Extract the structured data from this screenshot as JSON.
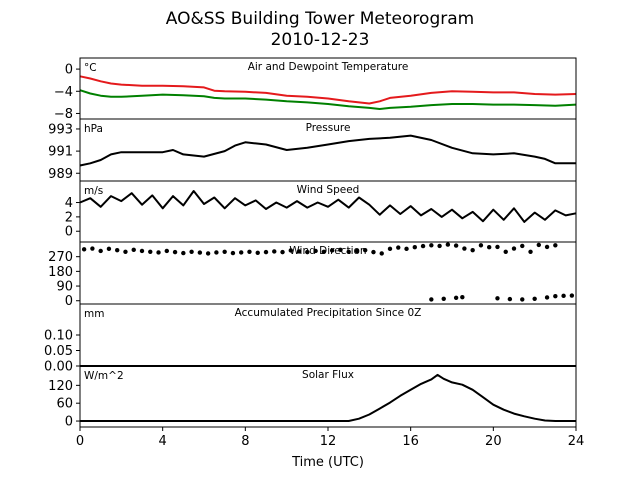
{
  "figure": {
    "title": "AO&SS Building Tower Meteorogram",
    "subtitle": "2010-12-23",
    "xlabel": "Time (UTC)",
    "xticks": [
      "0",
      "4",
      "8",
      "12",
      "16",
      "20",
      "24"
    ]
  },
  "chart_data": [
    {
      "type": "line",
      "title": "Air and Dewpoint Temperature",
      "unit": "°C",
      "xlim": [
        0,
        24
      ],
      "ylim": [
        -9,
        2
      ],
      "yticks": [
        {
          "v": 0,
          "label": "0"
        },
        {
          "v": -4,
          "label": "−4"
        },
        {
          "v": -8,
          "label": "−8"
        }
      ],
      "series": [
        {
          "color": "#e41a1c",
          "x": [
            0,
            0.5,
            1,
            1.5,
            2,
            3,
            4,
            5,
            6,
            6.5,
            7,
            8,
            9,
            10,
            11,
            12,
            13,
            14,
            14.5,
            15,
            16,
            17,
            18,
            19,
            20,
            21,
            22,
            23,
            24
          ],
          "y": [
            -1.3,
            -1.7,
            -2.2,
            -2.6,
            -2.8,
            -3.0,
            -3.0,
            -3.1,
            -3.3,
            -3.9,
            -4.0,
            -4.1,
            -4.3,
            -4.8,
            -5.0,
            -5.3,
            -5.8,
            -6.2,
            -5.8,
            -5.2,
            -4.8,
            -4.3,
            -4.0,
            -4.1,
            -4.2,
            -4.2,
            -4.5,
            -4.6,
            -4.5
          ]
        },
        {
          "color": "#008000",
          "x": [
            0,
            0.5,
            1,
            1.5,
            2,
            3,
            4,
            5,
            6,
            6.5,
            7,
            8,
            9,
            10,
            11,
            12,
            13,
            14,
            14.5,
            15,
            16,
            17,
            18,
            19,
            20,
            21,
            22,
            23,
            24
          ],
          "y": [
            -3.8,
            -4.4,
            -4.8,
            -5.0,
            -5.0,
            -4.8,
            -4.6,
            -4.7,
            -4.9,
            -5.2,
            -5.3,
            -5.3,
            -5.5,
            -5.8,
            -6.0,
            -6.3,
            -6.7,
            -7.0,
            -7.2,
            -7.0,
            -6.8,
            -6.5,
            -6.3,
            -6.3,
            -6.4,
            -6.4,
            -6.5,
            -6.6,
            -6.4
          ]
        }
      ]
    },
    {
      "type": "line",
      "title": "Pressure",
      "unit": "hPa",
      "xlim": [
        0,
        24
      ],
      "ylim": [
        988.3,
        993.9
      ],
      "yticks": [
        {
          "v": 993,
          "label": "993"
        },
        {
          "v": 991,
          "label": "991"
        },
        {
          "v": 989,
          "label": "989"
        }
      ],
      "series": [
        {
          "color": "#000000",
          "x": [
            0,
            0.5,
            1,
            1.5,
            2,
            3,
            4,
            4.5,
            5,
            6,
            7,
            7.5,
            8,
            8.5,
            9,
            10,
            11,
            12,
            13,
            14,
            15,
            16,
            17,
            18,
            19,
            20,
            21,
            22,
            22.5,
            23,
            23.5,
            24
          ],
          "y": [
            989.7,
            989.9,
            990.2,
            990.7,
            990.9,
            990.9,
            990.9,
            991.1,
            990.7,
            990.5,
            991.0,
            991.5,
            991.8,
            991.7,
            991.6,
            991.1,
            991.3,
            991.6,
            991.9,
            992.1,
            992.2,
            992.4,
            992.0,
            991.3,
            990.8,
            990.7,
            990.8,
            990.5,
            990.3,
            989.9,
            989.9,
            989.9
          ]
        }
      ]
    },
    {
      "type": "line",
      "title": "Wind Speed",
      "unit": "m/s",
      "xlim": [
        0,
        24
      ],
      "ylim": [
        -1.5,
        7
      ],
      "yticks": [
        {
          "v": 4,
          "label": "4"
        },
        {
          "v": 2,
          "label": "2"
        },
        {
          "v": 0,
          "label": "0"
        }
      ],
      "series": [
        {
          "color": "#000000",
          "x": [
            0,
            0.5,
            1,
            1.5,
            2,
            2.5,
            3,
            3.5,
            4,
            4.5,
            5,
            5.5,
            6,
            6.5,
            7,
            7.5,
            8,
            8.5,
            9,
            9.5,
            10,
            10.5,
            11,
            11.5,
            12,
            12.5,
            13,
            13.5,
            14,
            14.5,
            15,
            15.5,
            16,
            16.5,
            17,
            17.5,
            18,
            18.5,
            19,
            19.5,
            20,
            20.5,
            21,
            21.5,
            22,
            22.5,
            23,
            23.5,
            24
          ],
          "y": [
            4.0,
            4.6,
            3.4,
            4.9,
            4.2,
            5.3,
            3.7,
            5.0,
            3.2,
            4.9,
            3.6,
            5.6,
            3.8,
            4.7,
            3.2,
            4.6,
            3.6,
            4.3,
            3.1,
            4.0,
            3.3,
            4.2,
            3.3,
            4.0,
            3.4,
            4.4,
            3.3,
            4.7,
            3.7,
            2.3,
            3.6,
            2.4,
            3.5,
            2.2,
            3.1,
            2.0,
            3.0,
            1.8,
            2.7,
            1.4,
            3.0,
            1.6,
            3.2,
            1.3,
            2.6,
            1.6,
            2.9,
            2.2,
            2.5
          ]
        }
      ]
    },
    {
      "type": "scatter",
      "title": "Wind Direction",
      "unit": "",
      "xlim": [
        0,
        24
      ],
      "ylim": [
        -20,
        360
      ],
      "yticks": [
        {
          "v": 270,
          "label": "270"
        },
        {
          "v": 180,
          "label": "180"
        },
        {
          "v": 90,
          "label": "90"
        },
        {
          "v": 0,
          "label": "0"
        }
      ],
      "series": [
        {
          "color": "#000000",
          "x": [
            0.2,
            0.6,
            1.0,
            1.4,
            1.8,
            2.2,
            2.6,
            3.0,
            3.4,
            3.8,
            4.2,
            4.6,
            5.0,
            5.4,
            5.8,
            6.2,
            6.6,
            7.0,
            7.4,
            7.8,
            8.2,
            8.6,
            9.0,
            9.4,
            9.8,
            10.2,
            10.6,
            11.0,
            11.4,
            11.8,
            12.2,
            12.6,
            13.0,
            13.4,
            13.8,
            14.2,
            14.6,
            15.0,
            15.4,
            15.8,
            16.2,
            16.6,
            17.0,
            17.4,
            17.8,
            18.2,
            18.6,
            19.0,
            19.4,
            19.8,
            20.2,
            20.6,
            21.0,
            21.4,
            21.8,
            22.2,
            22.6,
            23.0,
            17.0,
            17.6,
            18.2,
            18.5,
            20.2,
            20.8,
            21.4,
            22.0,
            22.6,
            23.0,
            23.4,
            23.8
          ],
          "y": [
            315,
            320,
            305,
            318,
            310,
            300,
            312,
            305,
            300,
            296,
            305,
            298,
            292,
            300,
            295,
            290,
            296,
            300,
            292,
            296,
            300,
            294,
            298,
            302,
            298,
            308,
            302,
            298,
            305,
            300,
            308,
            312,
            300,
            305,
            310,
            298,
            290,
            318,
            326,
            318,
            328,
            335,
            340,
            336,
            344,
            338,
            320,
            310,
            340,
            328,
            330,
            300,
            320,
            336,
            300,
            342,
            330,
            340,
            8,
            12,
            18,
            22,
            15,
            10,
            8,
            12,
            20,
            28,
            30,
            32
          ]
        }
      ]
    },
    {
      "type": "line",
      "title": "Accumulated Precipitation Since 0Z",
      "unit": "mm",
      "xlim": [
        0,
        24
      ],
      "ylim": [
        0,
        0.2
      ],
      "yticks": [
        {
          "v": 0.1,
          "label": "0.10"
        },
        {
          "v": 0.05,
          "label": "0.05"
        },
        {
          "v": 0.0,
          "label": "0.00"
        }
      ],
      "series": [
        {
          "color": "#000000",
          "x": [
            0,
            24
          ],
          "y": [
            0,
            0
          ]
        }
      ]
    },
    {
      "type": "line",
      "title": "Solar Flux",
      "unit": "W/m^2",
      "xlim": [
        0,
        24
      ],
      "ylim": [
        -20,
        185
      ],
      "yticks": [
        {
          "v": 120,
          "label": "120"
        },
        {
          "v": 60,
          "label": "60"
        },
        {
          "v": 0,
          "label": "0"
        }
      ],
      "series": [
        {
          "color": "#000000",
          "x": [
            0,
            13,
            13.5,
            14,
            14.5,
            15,
            15.5,
            16,
            16.5,
            17,
            17.3,
            17.6,
            18,
            18.5,
            19,
            19.5,
            20,
            20.5,
            21,
            21.5,
            22,
            22.5,
            23,
            24
          ],
          "y": [
            0,
            0,
            8,
            22,
            42,
            62,
            85,
            105,
            125,
            140,
            155,
            142,
            130,
            122,
            105,
            80,
            55,
            38,
            25,
            16,
            8,
            2,
            0,
            0
          ]
        }
      ]
    }
  ]
}
